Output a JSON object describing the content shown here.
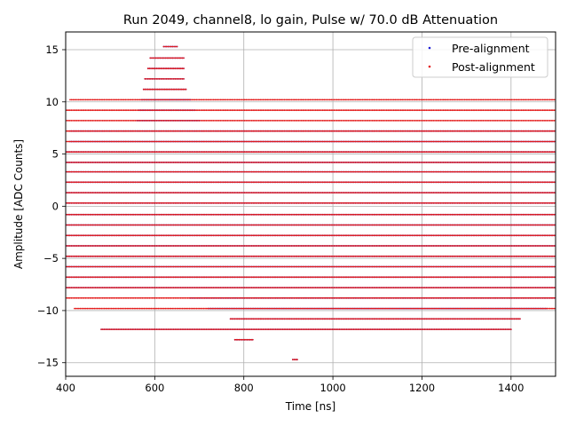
{
  "chart_data": {
    "type": "scatter",
    "title": "Run 2049, channel8, lo gain, Pulse w/ 70.0 dB Attenuation",
    "xlabel": "Time [ns]",
    "ylabel": "Amplitude [ADC Counts]",
    "xlim": [
      400,
      1500
    ],
    "ylim": [
      -16.3,
      16.7
    ],
    "xticks": [
      {
        "value": 400,
        "label": "400"
      },
      {
        "value": 600,
        "label": "600"
      },
      {
        "value": 800,
        "label": "800"
      },
      {
        "value": 1000,
        "label": "1000"
      },
      {
        "value": 1200,
        "label": "1200"
      },
      {
        "value": 1400,
        "label": "1400"
      }
    ],
    "yticks": [
      {
        "value": -15,
        "label": "−15"
      },
      {
        "value": -10,
        "label": "−10"
      },
      {
        "value": -5,
        "label": "−5"
      },
      {
        "value": 0,
        "label": "0"
      },
      {
        "value": 5,
        "label": "5"
      },
      {
        "value": 10,
        "label": "10"
      },
      {
        "value": 15,
        "label": "15"
      }
    ],
    "grid": true,
    "legend_position": "top-right",
    "series": [
      {
        "name": "Pre-alignment",
        "color": "#1f1fd6",
        "marker": "small-dot",
        "description_ranges": [
          {
            "y": 15.3,
            "x": [
              620,
              650
            ]
          },
          {
            "y": 14.2,
            "x": [
              590,
              665
            ]
          },
          {
            "y": 13.2,
            "x": [
              585,
              665
            ]
          },
          {
            "y": 12.2,
            "x": [
              578,
              665
            ]
          },
          {
            "y": 11.2,
            "x": [
              575,
              670
            ]
          },
          {
            "y": 10.2,
            "x": [
              570,
              680
            ]
          },
          {
            "y": 9.2,
            "x": [
              565,
              690
            ]
          },
          {
            "y": 8.2,
            "x": [
              560,
              700
            ]
          },
          {
            "y": 7.2,
            "x": [
              410,
              1500
            ]
          },
          {
            "y": 6.2,
            "x": [
              410,
              1500
            ]
          },
          {
            "y": 5.2,
            "x": [
              400,
              1500
            ]
          },
          {
            "y": 4.2,
            "x": [
              400,
              1500
            ]
          },
          {
            "y": 3.3,
            "x": [
              400,
              1500
            ]
          },
          {
            "y": 2.3,
            "x": [
              400,
              1500
            ]
          },
          {
            "y": 1.3,
            "x": [
              400,
              1500
            ]
          },
          {
            "y": 0.3,
            "x": [
              400,
              1500
            ]
          },
          {
            "y": -0.8,
            "x": [
              400,
              1500
            ]
          },
          {
            "y": -1.8,
            "x": [
              400,
              1500
            ]
          },
          {
            "y": -2.8,
            "x": [
              400,
              1500
            ]
          },
          {
            "y": -3.8,
            "x": [
              400,
              1500
            ]
          },
          {
            "y": -4.8,
            "x": [
              400,
              1500
            ]
          },
          {
            "y": -5.8,
            "x": [
              400,
              1500
            ]
          },
          {
            "y": -6.8,
            "x": [
              400,
              1500
            ]
          },
          {
            "y": -7.8,
            "x": [
              400,
              1500
            ]
          },
          {
            "y": -8.8,
            "x": [
              680,
              1500
            ]
          },
          {
            "y": -9.8,
            "x": [
              720,
              1480
            ]
          },
          {
            "y": -10.8,
            "x": [
              770,
              1420
            ]
          },
          {
            "y": -11.8,
            "x": [
              480,
              1400
            ]
          },
          {
            "y": -12.8,
            "x": [
              780,
              820
            ]
          },
          {
            "y": -14.7,
            "x": [
              910,
              920
            ]
          }
        ]
      },
      {
        "name": "Post-alignment",
        "color": "#e31a1a",
        "marker": "small-dot",
        "description_ranges": [
          {
            "y": 15.3,
            "x": [
              620,
              650
            ]
          },
          {
            "y": 14.2,
            "x": [
              590,
              665
            ]
          },
          {
            "y": 13.2,
            "x": [
              585,
              665
            ]
          },
          {
            "y": 12.2,
            "x": [
              578,
              665
            ]
          },
          {
            "y": 11.2,
            "x": [
              575,
              670
            ]
          },
          {
            "y": 10.2,
            "x": [
              410,
              1500
            ]
          },
          {
            "y": 9.2,
            "x": [
              400,
              1500
            ]
          },
          {
            "y": 8.2,
            "x": [
              400,
              1500
            ]
          },
          {
            "y": 7.2,
            "x": [
              400,
              1500
            ]
          },
          {
            "y": 6.2,
            "x": [
              400,
              1500
            ]
          },
          {
            "y": 5.2,
            "x": [
              400,
              1500
            ]
          },
          {
            "y": 4.2,
            "x": [
              400,
              1500
            ]
          },
          {
            "y": 3.3,
            "x": [
              400,
              1500
            ]
          },
          {
            "y": 2.3,
            "x": [
              400,
              1500
            ]
          },
          {
            "y": 1.3,
            "x": [
              400,
              1500
            ]
          },
          {
            "y": 0.3,
            "x": [
              400,
              1500
            ]
          },
          {
            "y": -0.8,
            "x": [
              400,
              1500
            ]
          },
          {
            "y": -1.8,
            "x": [
              400,
              1500
            ]
          },
          {
            "y": -2.8,
            "x": [
              400,
              1500
            ]
          },
          {
            "y": -3.8,
            "x": [
              400,
              1500
            ]
          },
          {
            "y": -4.8,
            "x": [
              400,
              1500
            ]
          },
          {
            "y": -5.8,
            "x": [
              400,
              1500
            ]
          },
          {
            "y": -6.8,
            "x": [
              400,
              1500
            ]
          },
          {
            "y": -7.8,
            "x": [
              400,
              1500
            ]
          },
          {
            "y": -8.8,
            "x": [
              400,
              1500
            ]
          },
          {
            "y": -9.8,
            "x": [
              420,
              1500
            ]
          },
          {
            "y": -10.8,
            "x": [
              770,
              1420
            ]
          },
          {
            "y": -11.8,
            "x": [
              480,
              1400
            ]
          },
          {
            "y": -12.8,
            "x": [
              780,
              820
            ]
          },
          {
            "y": -14.7,
            "x": [
              910,
              920
            ]
          }
        ]
      }
    ]
  }
}
